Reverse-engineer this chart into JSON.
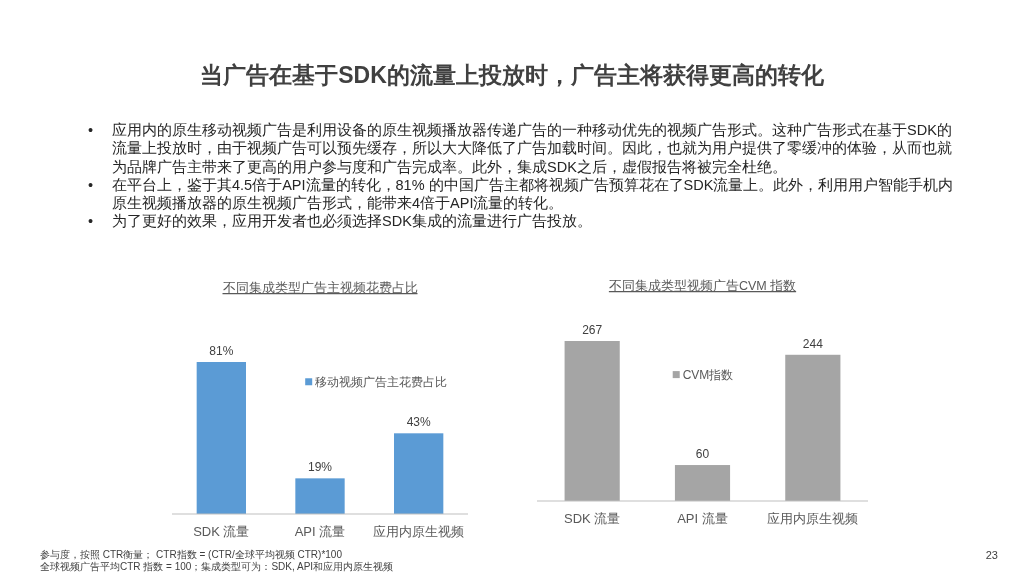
{
  "chart_data": [
    {
      "type": "other",
      "title": "当广告在基于SDK的流量上投放时，广告主将获得更高的转化",
      "annotations": [
        "• 应用内的原生移动视频广告是利用设备的原生视频播放器传递广告的一种移动优先的视频广告形式。这种广告形式在基于SDK的流量上投放时，由于视频广告可以预先缓存，所以大大降低了广告加载时间。因此，也就为用户提供了零缓冲的体验，从而也就为品牌广告主带来了更高的用户参与度和广告完成率。此外，集成SDK之后，虚假报告将被完全杜绝。",
        "• 在平台上，鉴于其4.5倍于API流量的转化，81% 的中国广告主都将视频广告预算花在了SDK流量上。此外，利用用户智能手机内原生视频播放器的原生视频广告形式，能带来4倍于API流量的转化。",
        "• 为了更好的效果，应用开发者也必须选择SDK集成的流量进行广告投放。"
      ]
    },
    {
      "type": "bar",
      "title": "不同集成类型广告主视频花费占比",
      "categories": [
        "SDK 流量",
        "API 流量",
        "应用内原生视频"
      ],
      "series": [
        {
          "name": "移动视频广告主花费占比",
          "color": "#5b9bd5",
          "values": [
            81,
            19,
            43
          ],
          "value_labels": [
            "81%",
            "19%",
            "43%"
          ]
        }
      ],
      "legend": "top right"
    },
    {
      "type": "bar",
      "title": "不同集成类型视频广告CVM 指数",
      "categories": [
        "SDK 流量",
        "API 流量",
        "应用内原生视频"
      ],
      "series": [
        {
          "name": "CVM指数",
          "color": "#a5a5a5",
          "values": [
            267,
            60,
            244
          ]
        }
      ],
      "data_labels": true,
      "legend": "top"
    },
    {
      "type": "other",
      "annotations": [
        "参与度，按照 CTR衡量； CTR指数 = (CTR/全球平均视频 CTR)*100",
        "全球视频广告平均CTR 指数 = 100；集成类型可为：SDK, API和应用内原生视频",
        "23"
      ]
    }
  ]
}
